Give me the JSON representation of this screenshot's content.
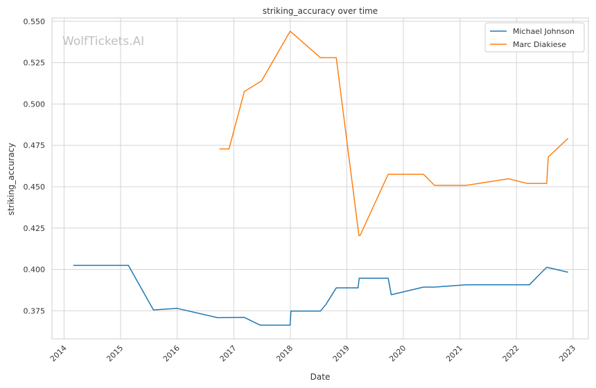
{
  "chart_data": {
    "type": "line",
    "title": "striking_accuracy over time",
    "xlabel": "Date",
    "ylabel": "striking_accuracy",
    "watermark": "WolfTickets.AI",
    "x_ticks": [
      "2014",
      "2015",
      "2016",
      "2017",
      "2018",
      "2019",
      "2020",
      "2021",
      "2022",
      "2023"
    ],
    "y_ticks": [
      "0.375",
      "0.400",
      "0.425",
      "0.450",
      "0.475",
      "0.500",
      "0.525",
      "0.550"
    ],
    "xlim": [
      "2013-10-15",
      "2023-04-10"
    ],
    "ylim": [
      0.358,
      0.552
    ],
    "grid": true,
    "legend_position": "top-right",
    "series": [
      {
        "name": "Michael Johnson",
        "color": "#1f77b4",
        "points": [
          [
            "2014-03-01",
            0.4025
          ],
          [
            "2015-02-20",
            0.4025
          ],
          [
            "2015-08-01",
            0.3755
          ],
          [
            "2015-12-31",
            0.3765
          ],
          [
            "2016-09-20",
            0.3708
          ],
          [
            "2017-03-10",
            0.371
          ],
          [
            "2017-06-20",
            0.3663
          ],
          [
            "2017-12-31",
            0.3663
          ],
          [
            "2018-01-05",
            0.3748
          ],
          [
            "2018-07-15",
            0.3748
          ],
          [
            "2018-08-20",
            0.379
          ],
          [
            "2018-10-25",
            0.3888
          ],
          [
            "2019-03-15",
            0.3888
          ],
          [
            "2019-03-22",
            0.3947
          ],
          [
            "2019-09-25",
            0.3947
          ],
          [
            "2019-10-15",
            0.3847
          ],
          [
            "2020-05-10",
            0.3893
          ],
          [
            "2020-07-20",
            0.3893
          ],
          [
            "2021-02-10",
            0.3907
          ],
          [
            "2022-03-25",
            0.3907
          ],
          [
            "2022-05-25",
            0.3965
          ],
          [
            "2022-07-15",
            0.4013
          ],
          [
            "2022-11-30",
            0.3983
          ]
        ]
      },
      {
        "name": "Marc Diakiese",
        "color": "#ff7f0e",
        "points": [
          [
            "2016-09-30",
            0.4728
          ],
          [
            "2016-12-01",
            0.4728
          ],
          [
            "2017-03-10",
            0.5075
          ],
          [
            "2017-06-30",
            0.514
          ],
          [
            "2017-12-31",
            0.544
          ],
          [
            "2018-07-15",
            0.528
          ],
          [
            "2018-10-25",
            0.528
          ],
          [
            "2019-03-20",
            0.4205
          ],
          [
            "2019-03-28",
            0.4205
          ],
          [
            "2019-09-25",
            0.4575
          ],
          [
            "2020-05-10",
            0.4575
          ],
          [
            "2020-07-20",
            0.4508
          ],
          [
            "2021-02-10",
            0.4508
          ],
          [
            "2021-11-10",
            0.4548
          ],
          [
            "2022-03-10",
            0.452
          ],
          [
            "2022-07-15",
            0.452
          ],
          [
            "2022-07-25",
            0.468
          ],
          [
            "2022-11-30",
            0.4792
          ]
        ]
      }
    ]
  }
}
